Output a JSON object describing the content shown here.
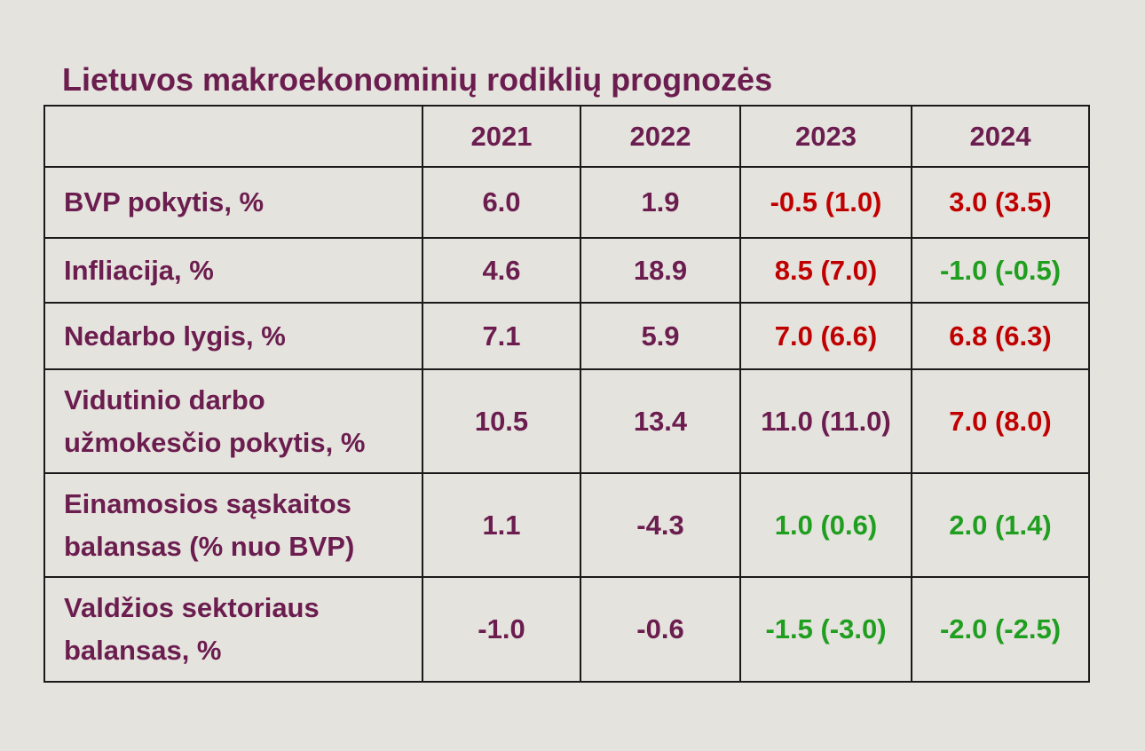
{
  "colors": {
    "text": "#6b1d4f",
    "red": "#c00000",
    "green": "#1f9e1f",
    "background": "#e5e3dd",
    "border": "#1a1a1a"
  },
  "chart_data": {
    "type": "table",
    "title": "Lietuvos makroekonominių rodiklių prognozės",
    "columns": [
      "",
      "2021",
      "2022",
      "2023",
      "2024"
    ],
    "rows": [
      {
        "label": "BVP pokytis, %",
        "cells": [
          {
            "text": "6.0",
            "color": "default"
          },
          {
            "text": "1.9",
            "color": "default"
          },
          {
            "text": "-0.5 (1.0)",
            "color": "red"
          },
          {
            "text": "3.0 (3.5)",
            "color": "red"
          }
        ]
      },
      {
        "label": "Infliacija, %",
        "cells": [
          {
            "text": "4.6",
            "color": "default"
          },
          {
            "text": "18.9",
            "color": "default"
          },
          {
            "text": "8.5 (7.0)",
            "color": "red"
          },
          {
            "text": "-1.0 (-0.5)",
            "color": "green"
          }
        ]
      },
      {
        "label": "Nedarbo lygis, %",
        "cells": [
          {
            "text": "7.1",
            "color": "default"
          },
          {
            "text": "5.9",
            "color": "default"
          },
          {
            "text": "7.0 (6.6)",
            "color": "red"
          },
          {
            "text": "6.8 (6.3)",
            "color": "red"
          }
        ]
      },
      {
        "label": "Vidutinio darbo užmokesčio pokytis, %",
        "cells": [
          {
            "text": "10.5",
            "color": "default"
          },
          {
            "text": "13.4",
            "color": "default"
          },
          {
            "text": "11.0 (11.0)",
            "color": "default"
          },
          {
            "text": "7.0 (8.0)",
            "color": "red"
          }
        ]
      },
      {
        "label": "Einamosios sąskaitos balansas (% nuo BVP)",
        "cells": [
          {
            "text": "1.1",
            "color": "default"
          },
          {
            "text": "-4.3",
            "color": "default"
          },
          {
            "text": "1.0 (0.6)",
            "color": "green"
          },
          {
            "text": "2.0 (1.4)",
            "color": "green"
          }
        ]
      },
      {
        "label": "Valdžios sektoriaus balansas, %",
        "cells": [
          {
            "text": "-1.0",
            "color": "default"
          },
          {
            "text": "-0.6",
            "color": "default"
          },
          {
            "text": "-1.5 (-3.0)",
            "color": "green"
          },
          {
            "text": "-2.0 (-2.5)",
            "color": "green"
          }
        ]
      }
    ]
  }
}
